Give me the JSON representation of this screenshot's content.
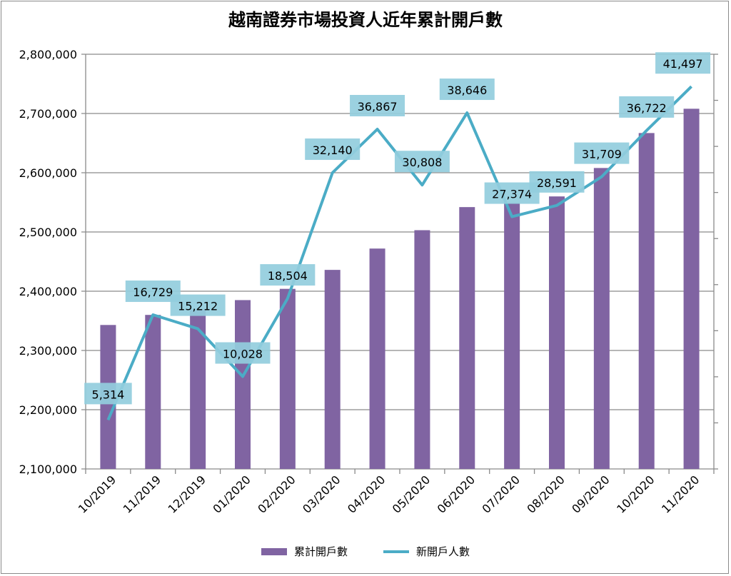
{
  "chart_data": {
    "type": "bar+line",
    "title": "越南證券市場投資人近年累計開戶數",
    "categories": [
      "10/2019",
      "11/2019",
      "12/2019",
      "01/2020",
      "02/2020",
      "03/2020",
      "04/2020",
      "05/2020",
      "06/2020",
      "07/2020",
      "08/2020",
      "09/2020",
      "10/2020",
      "11/2020"
    ],
    "series": [
      {
        "name": "累計開戶數",
        "type": "bar",
        "axis": "left",
        "color": "#8064a2",
        "values": [
          2343000,
          2360000,
          2368000,
          2385000,
          2404000,
          2436000,
          2472000,
          2503000,
          2542000,
          2549000,
          2560000,
          2608000,
          2667000,
          2708000
        ]
      },
      {
        "name": "新開戶人數",
        "type": "line",
        "axis": "right",
        "color": "#4bacc6",
        "values": [
          5314,
          16729,
          15212,
          10028,
          18504,
          32140,
          36867,
          30808,
          38646,
          27374,
          28591,
          31709,
          36722,
          41497
        ],
        "data_labels": [
          "5,314",
          "16,729",
          "15,212",
          "10,028",
          "18,504",
          "32,140",
          "36,867",
          "30,808",
          "38,646",
          "27,374",
          "28,591",
          "31,709",
          "36,722",
          "41,497"
        ]
      }
    ],
    "y_left": {
      "min": 2100000,
      "max": 2800000,
      "step": 100000,
      "tick_labels": [
        "2,100,000",
        "2,200,000",
        "2,300,000",
        "2,400,000",
        "2,500,000",
        "2,600,000",
        "2,700,000",
        "2,800,000"
      ]
    },
    "y_right": {
      "min": 0,
      "max": 45000,
      "step": 5000,
      "tick_labels_shown": false
    },
    "grid": true,
    "legend": "bottom",
    "label_box_color": "#93cddd"
  }
}
